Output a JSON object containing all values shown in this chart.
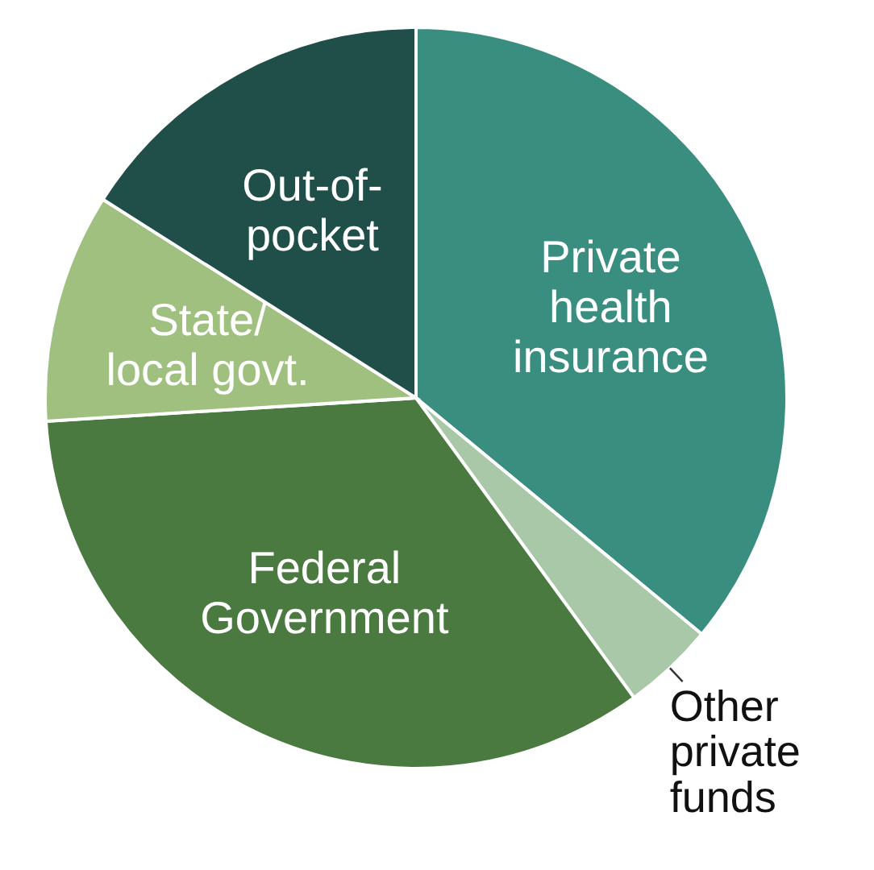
{
  "chart_data": {
    "type": "pie",
    "categories": [
      "Private health insurance",
      "Other private funds",
      "Federal Government",
      "State/ local govt.",
      "Out-of-pocket"
    ],
    "values": [
      36,
      4,
      34,
      10,
      16
    ],
    "colors": [
      "#3a8e80",
      "#a8c8a8",
      "#4a7a40",
      "#9fc07f",
      "#1f4f48"
    ],
    "legend": false
  }
}
